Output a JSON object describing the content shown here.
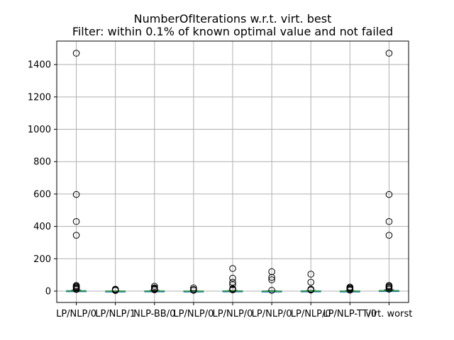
{
  "chart_data": {
    "type": "box",
    "title": "NumberOfIterations w.r.t. virt. best",
    "subtitle": "Filter: within 0.1% of known optimal value and not failed",
    "xlabel": "",
    "ylabel": "",
    "ylim": [
      -70,
      1545
    ],
    "yticks": [
      0,
      200,
      400,
      600,
      800,
      1000,
      1200,
      1400
    ],
    "grid": true,
    "colors": {
      "box": "#1f77b4",
      "median": "#2ca02c",
      "whisker": "#000000",
      "flier": "#000000",
      "grid": "#b0b0b0"
    },
    "categories": [
      "LP/NLP/0",
      "LP/NLP/1",
      "NLP-BB/0",
      "LP/NLP/0",
      "LP/NLP/0",
      "LP/NLP/0",
      "LP/NLP/0",
      "LP/NLP-TT/0",
      "virt. worst"
    ],
    "boxes": [
      {
        "q1": 0,
        "median": 1,
        "q3": 3,
        "whislo": 0,
        "whishi": 6,
        "fliers": [
          10,
          15,
          20,
          25,
          30,
          35,
          345,
          430,
          597,
          1470
        ]
      },
      {
        "q1": 0,
        "median": 0,
        "q3": 1,
        "whislo": 0,
        "whishi": 2,
        "fliers": [
          4,
          6,
          8,
          10,
          12
        ]
      },
      {
        "q1": 0,
        "median": 1,
        "q3": 2,
        "whislo": 0,
        "whishi": 5,
        "fliers": [
          8,
          12,
          16,
          20,
          30
        ]
      },
      {
        "q1": 0,
        "median": 0,
        "q3": 1,
        "whislo": 0,
        "whishi": 2,
        "fliers": [
          5,
          10,
          20
        ]
      },
      {
        "q1": 0,
        "median": 1,
        "q3": 2,
        "whislo": 0,
        "whishi": 4,
        "fliers": [
          8,
          12,
          15,
          40,
          55,
          80,
          140
        ]
      },
      {
        "q1": 0,
        "median": 0,
        "q3": 1,
        "whislo": 0,
        "whishi": 3,
        "fliers": [
          5,
          70,
          85,
          120
        ]
      },
      {
        "q1": 0,
        "median": 1,
        "q3": 2,
        "whislo": 0,
        "whishi": 4,
        "fliers": [
          7,
          10,
          12,
          55,
          105
        ]
      },
      {
        "q1": 0,
        "median": 0,
        "q3": 1,
        "whislo": 0,
        "whishi": 3,
        "fliers": [
          6,
          10,
          15,
          20,
          25
        ]
      },
      {
        "q1": 1,
        "median": 2,
        "q3": 4,
        "whislo": 0,
        "whishi": 8,
        "fliers": [
          12,
          18,
          24,
          30,
          35,
          345,
          430,
          597,
          1470
        ]
      }
    ]
  }
}
